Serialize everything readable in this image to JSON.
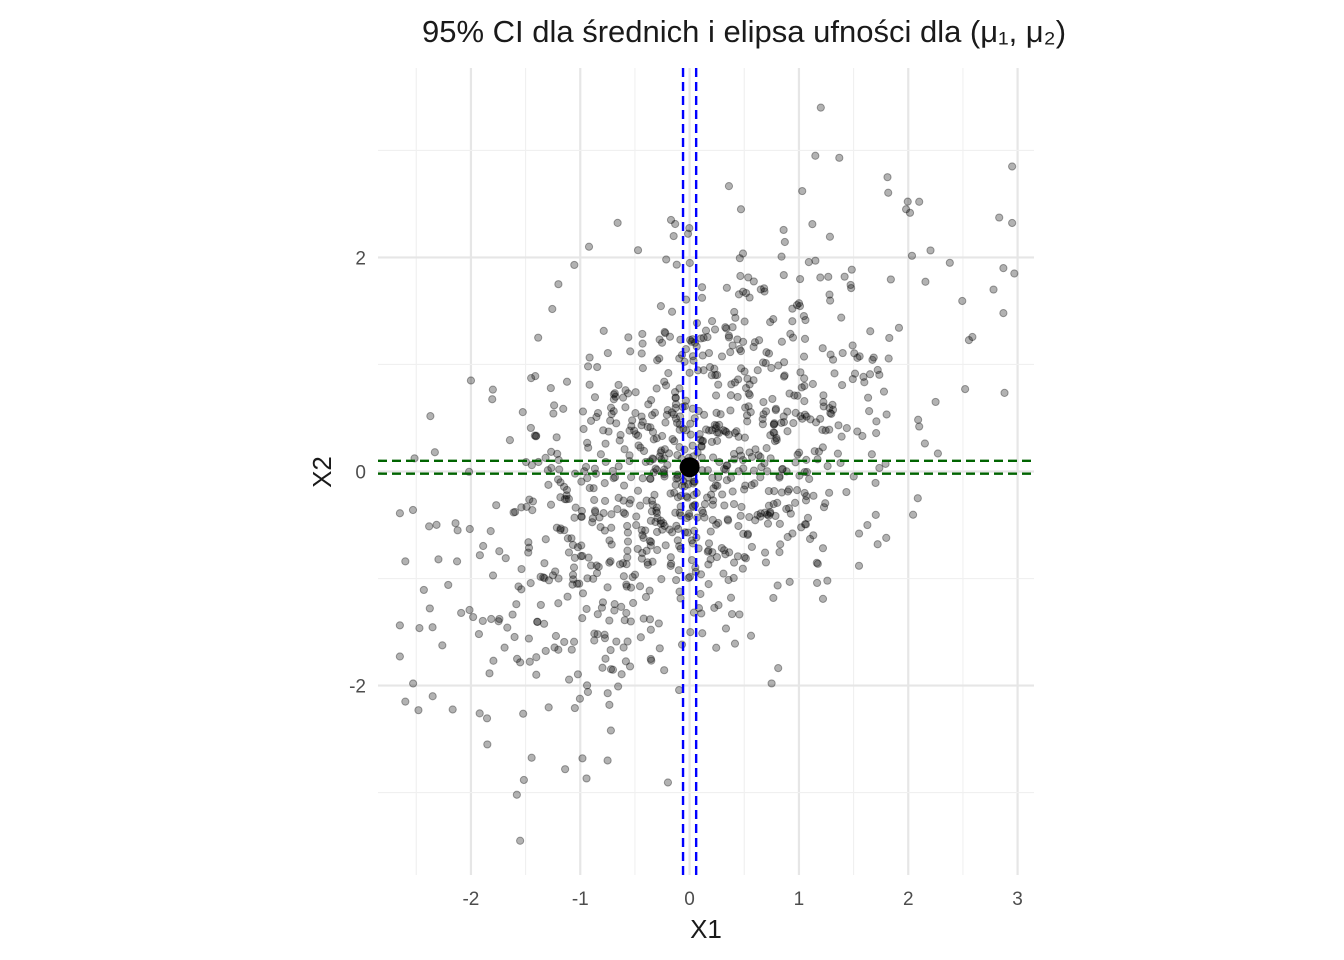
{
  "chart_data": {
    "type": "scatter",
    "title": "95% CI dla średnich i elipsa ufności dla (μ₁, μ₂)",
    "xlabel": "X1",
    "ylabel": "X2",
    "xlim": [
      -2.85,
      3.15
    ],
    "ylim": [
      -3.77,
      3.77
    ],
    "x_ticks": [
      -2,
      -1,
      0,
      1,
      2,
      3
    ],
    "y_ticks": [
      -2,
      0,
      2
    ],
    "x_tick_labels": [
      "-2",
      "-1",
      "0",
      "1",
      "2",
      "3"
    ],
    "y_tick_labels": [
      "-2",
      "0",
      "2"
    ],
    "grid": true,
    "point_color": "#000000",
    "point_opacity": 0.3,
    "n_points": 1000,
    "mean": {
      "x": 0.0,
      "y": 0.04
    },
    "ci_x1": [
      -0.06,
      0.06
    ],
    "ci_x2": [
      -0.02,
      0.1
    ],
    "ci_x1_color": "#0000ff",
    "ci_x2_color": "#006400",
    "mean_color": "#000000",
    "ellipse_color": "#ff0000",
    "distribution": {
      "sd_x": 0.98,
      "sd_y": 1.0,
      "corr": 0.5
    },
    "outlier_points": [
      {
        "x": 1.2,
        "y": 3.4
      },
      {
        "x": 1.15,
        "y": 2.95
      },
      {
        "x": 2.95,
        "y": 2.85
      },
      {
        "x": 2.87,
        "y": 1.9
      },
      {
        "x": 2.97,
        "y": 1.85
      },
      {
        "x": 2.87,
        "y": 1.48
      },
      {
        "x": 2.38,
        "y": 1.95
      },
      {
        "x": 2.52,
        "y": 0.77
      },
      {
        "x": 1.81,
        "y": 2.75
      },
      {
        "x": 1.98,
        "y": 2.45
      },
      {
        "x": 2.1,
        "y": 2.52
      },
      {
        "x": 0.47,
        "y": 2.45
      },
      {
        "x": 1.03,
        "y": 2.62
      },
      {
        "x": -0.92,
        "y": 2.1
      },
      {
        "x": -0.17,
        "y": 2.35
      },
      {
        "x": -1.2,
        "y": 1.75
      },
      {
        "x": -2.0,
        "y": 0.85
      },
      {
        "x": -2.33,
        "y": 0.18
      },
      {
        "x": -2.6,
        "y": -0.84
      },
      {
        "x": -2.53,
        "y": -0.36
      },
      {
        "x": -2.6,
        "y": -2.15
      },
      {
        "x": -2.48,
        "y": -2.23
      },
      {
        "x": -2.35,
        "y": -2.1
      },
      {
        "x": -1.58,
        "y": -3.02
      },
      {
        "x": -1.55,
        "y": -3.45
      },
      {
        "x": -0.98,
        "y": -2.68
      },
      {
        "x": -0.75,
        "y": -2.7
      },
      {
        "x": -0.72,
        "y": -2.42
      },
      {
        "x": 0.75,
        "y": -1.98
      },
      {
        "x": 1.22,
        "y": -1.19
      },
      {
        "x": 1.26,
        "y": -1.02
      },
      {
        "x": 1.72,
        "y": -0.68
      },
      {
        "x": 1.55,
        "y": -0.58
      },
      {
        "x": 2.1,
        "y": 0.42
      },
      {
        "x": 2.25,
        "y": 0.65
      },
      {
        "x": -0.93,
        "y": -2.06
      },
      {
        "x": -1.85,
        "y": -2.55
      },
      {
        "x": -1.92,
        "y": -2.26
      },
      {
        "x": -1.98,
        "y": -1.36
      }
    ]
  }
}
